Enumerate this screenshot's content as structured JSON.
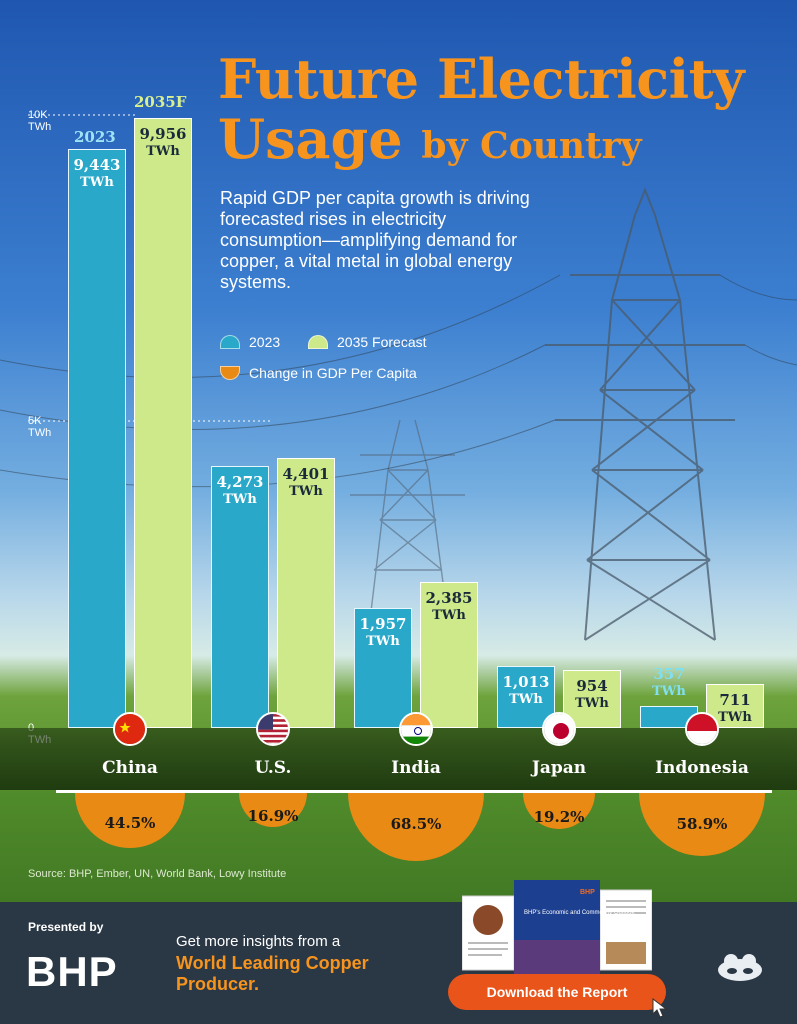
{
  "header": {
    "title_line1": "Future Electricity",
    "title_line2a": "Usage",
    "title_line2b": "by Country",
    "subtitle": "Rapid GDP per capita growth is driving forecasted rises in electricity consumption—amplifying demand for copper, a vital metal in global energy systems."
  },
  "legend": {
    "item_2023": "2023",
    "item_2035": "2035 Forecast",
    "item_gdp": "Change in GDP Per Capita"
  },
  "year_labels": {
    "y2023": "2023",
    "y2035": "2035F"
  },
  "axis": {
    "tick_10k": "10K",
    "tick_5k": "5K",
    "tick_0": "0",
    "unit": "TWh"
  },
  "colors": {
    "bar_2023": "#2aa8c9",
    "bar_2035": "#cde98a",
    "gdp": "#e88a14",
    "title": "#f7941d"
  },
  "chart_data": {
    "type": "bar",
    "categories": [
      "China",
      "U.S.",
      "India",
      "Japan",
      "Indonesia"
    ],
    "ylim": [
      0,
      10000
    ],
    "series": [
      {
        "name": "2023",
        "values": [
          9443,
          4273,
          1957,
          1013,
          357
        ],
        "labels": [
          "9,443",
          "4,273",
          "1,957",
          "1,013",
          "357"
        ]
      },
      {
        "name": "2035 Forecast",
        "values": [
          9956,
          4401,
          2385,
          954,
          711
        ],
        "labels": [
          "9,956",
          "4,401",
          "2,385",
          "954",
          "711"
        ]
      }
    ],
    "gdp_change": {
      "name": "Change in GDP Per Capita",
      "values": [
        44.5,
        16.9,
        68.5,
        19.2,
        58.9
      ],
      "labels": [
        "44.5%",
        "16.9%",
        "68.5%",
        "19.2%",
        "58.9%"
      ]
    },
    "unit": "TWh"
  },
  "flags": [
    "china-flag-icon",
    "us-flag-icon",
    "india-flag-icon",
    "japan-flag-icon",
    "indonesia-flag-icon"
  ],
  "source": "Source: BHP, Ember, UN, World Bank, Lowy Institute",
  "footer": {
    "presented_by": "Presented by",
    "brand": "BHP",
    "insight_line1": "Get more insights from a",
    "insight_line2": "World Leading Copper Producer.",
    "button": "Download the Report",
    "report_brand": "BHP",
    "report_title": "BHP's Economic and Commodity Outlook"
  }
}
